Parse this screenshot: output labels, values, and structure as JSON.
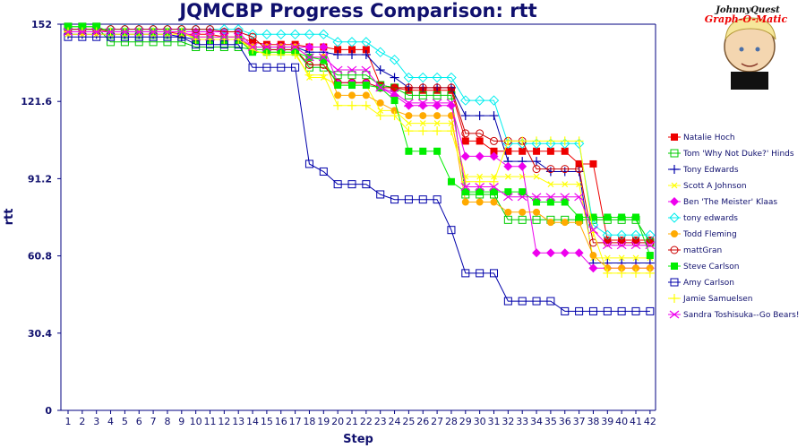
{
  "chart_data": {
    "type": "line",
    "title": "JQMCBP Progress Comparison: rtt",
    "xlabel": "Step",
    "ylabel": "rtt",
    "ylim": [
      0,
      152
    ],
    "yticks": [
      "0",
      "30.4",
      "60.8",
      "91.2",
      "121.6",
      "152"
    ],
    "ytick_values": [
      0,
      30.4,
      60.8,
      91.2,
      121.6,
      152
    ],
    "x": [
      1,
      2,
      3,
      4,
      5,
      6,
      7,
      8,
      9,
      10,
      11,
      12,
      13,
      14,
      15,
      16,
      17,
      18,
      19,
      20,
      21,
      22,
      23,
      24,
      25,
      26,
      27,
      28,
      29,
      30,
      31,
      32,
      33,
      34,
      35,
      36,
      37,
      38,
      39,
      40,
      41,
      42
    ],
    "grid": false,
    "legend_position": "right",
    "series": [
      {
        "name": "Natalie Hoch",
        "color": "#ee0000",
        "marker": "square-filled",
        "values": [
          150,
          150,
          150,
          149,
          149,
          149,
          149,
          149,
          148,
          148,
          148,
          147,
          147,
          145,
          144,
          144,
          144,
          143,
          143,
          142,
          142,
          142,
          128,
          127,
          126,
          126,
          126,
          126,
          106,
          106,
          102,
          102,
          102,
          102,
          102,
          102,
          97,
          97,
          67,
          67,
          67,
          67
        ]
      },
      {
        "name": "Tom 'Why Not Duke?' Hinds",
        "color": "#00cc00",
        "marker": "square-open",
        "values": [
          151,
          151,
          151,
          145,
          145,
          145,
          145,
          145,
          145,
          143,
          143,
          143,
          143,
          142,
          142,
          142,
          142,
          135,
          135,
          132,
          132,
          132,
          128,
          127,
          124,
          124,
          124,
          124,
          85,
          85,
          85,
          75,
          75,
          75,
          75,
          75,
          75,
          75,
          75,
          75,
          75,
          66
        ]
      },
      {
        "name": "Tony Edwards",
        "color": "#0000aa",
        "marker": "plus",
        "values": [
          148,
          148,
          148,
          148,
          148,
          148,
          148,
          148,
          147,
          146,
          146,
          146,
          146,
          143,
          143,
          143,
          143,
          141,
          141,
          140,
          140,
          140,
          134,
          131,
          127,
          127,
          127,
          127,
          116,
          116,
          116,
          98,
          98,
          98,
          94,
          94,
          94,
          58,
          58,
          58,
          58,
          58
        ]
      },
      {
        "name": "Scott A Johnson",
        "color": "#ffff00",
        "marker": "x-small",
        "values": [
          148,
          148,
          148,
          148,
          148,
          148,
          148,
          148,
          148,
          147,
          147,
          147,
          147,
          141,
          141,
          141,
          141,
          131,
          131,
          128,
          128,
          128,
          118,
          118,
          113,
          113,
          113,
          113,
          92,
          92,
          92,
          92,
          92,
          92,
          89,
          89,
          89,
          60,
          60,
          60,
          60,
          60
        ]
      },
      {
        "name": "Ben 'The Meister' Klaas",
        "color": "#ee00ee",
        "marker": "diamond-filled",
        "values": [
          149,
          149,
          149,
          149,
          149,
          149,
          149,
          149,
          149,
          149,
          149,
          149,
          149,
          143,
          143,
          143,
          143,
          143,
          143,
          129,
          129,
          129,
          127,
          124,
          120,
          120,
          120,
          120,
          100,
          100,
          100,
          96,
          96,
          62,
          62,
          62,
          62,
          56,
          56,
          56,
          56,
          56
        ]
      },
      {
        "name": "tony edwards",
        "color": "#00eeee",
        "marker": "diamond-open",
        "values": [
          150,
          150,
          150,
          150,
          150,
          150,
          150,
          150,
          150,
          150,
          150,
          150,
          150,
          148,
          148,
          148,
          148,
          148,
          148,
          145,
          145,
          145,
          141,
          138,
          131,
          131,
          131,
          131,
          122,
          122,
          122,
          105,
          105,
          105,
          105,
          105,
          105,
          73,
          69,
          69,
          69,
          69
        ]
      },
      {
        "name": "Todd Fleming",
        "color": "#ffaa00",
        "marker": "circle-filled",
        "values": [
          149,
          149,
          149,
          149,
          149,
          149,
          149,
          149,
          149,
          146,
          146,
          146,
          146,
          143,
          143,
          143,
          143,
          139,
          139,
          124,
          124,
          124,
          121,
          118,
          116,
          116,
          116,
          116,
          82,
          82,
          82,
          78,
          78,
          78,
          74,
          74,
          74,
          61,
          56,
          56,
          56,
          56
        ]
      },
      {
        "name": "mattGran",
        "color": "#cc0000",
        "marker": "circle-open",
        "values": [
          150,
          150,
          150,
          150,
          150,
          150,
          150,
          150,
          150,
          150,
          150,
          149,
          149,
          147,
          142,
          142,
          142,
          136,
          136,
          129,
          129,
          129,
          127,
          127,
          127,
          127,
          127,
          127,
          109,
          109,
          106,
          106,
          106,
          95,
          95,
          95,
          95,
          66,
          66,
          66,
          66,
          66
        ]
      },
      {
        "name": "Steve Carlson",
        "color": "#00ee00",
        "marker": "square-filled",
        "values": [
          151,
          151,
          151,
          149,
          149,
          149,
          149,
          149,
          149,
          146,
          146,
          146,
          146,
          141,
          141,
          141,
          141,
          139,
          138,
          128,
          128,
          128,
          127,
          122,
          102,
          102,
          102,
          90,
          86,
          86,
          86,
          86,
          86,
          82,
          82,
          82,
          76,
          76,
          76,
          76,
          76,
          61
        ]
      },
      {
        "name": "Amy Carlson",
        "color": "#0000aa",
        "marker": "square-open",
        "values": [
          147,
          147,
          147,
          147,
          147,
          147,
          147,
          147,
          147,
          144,
          144,
          144,
          144,
          135,
          135,
          135,
          135,
          97,
          94,
          89,
          89,
          89,
          85,
          83,
          83,
          83,
          83,
          71,
          54,
          54,
          54,
          43,
          43,
          43,
          43,
          39,
          39,
          39,
          39,
          39,
          39,
          39
        ]
      },
      {
        "name": "Jamie Samuelsen",
        "color": "#ffff00",
        "marker": "plus",
        "values": [
          149,
          149,
          149,
          149,
          149,
          149,
          149,
          149,
          149,
          146,
          146,
          146,
          146,
          142,
          140,
          140,
          140,
          132,
          132,
          120,
          120,
          120,
          116,
          116,
          110,
          110,
          110,
          110,
          90,
          90,
          90,
          106,
          106,
          106,
          106,
          106,
          106,
          70,
          54,
          54,
          54,
          54
        ]
      },
      {
        "name": "Sandra Toshisuka--Go Bears!",
        "color": "#ee00ee",
        "marker": "x-large",
        "values": [
          149,
          149,
          149,
          149,
          149,
          149,
          149,
          149,
          149,
          147,
          147,
          147,
          147,
          143,
          143,
          143,
          143,
          139,
          139,
          134,
          134,
          134,
          127,
          125,
          121,
          121,
          121,
          121,
          88,
          88,
          88,
          84,
          84,
          84,
          84,
          84,
          84,
          71,
          65,
          65,
          65,
          65
        ]
      }
    ]
  },
  "logo": {
    "line1": "JohnnyQuest",
    "line2": "Graph-O-Matic"
  }
}
